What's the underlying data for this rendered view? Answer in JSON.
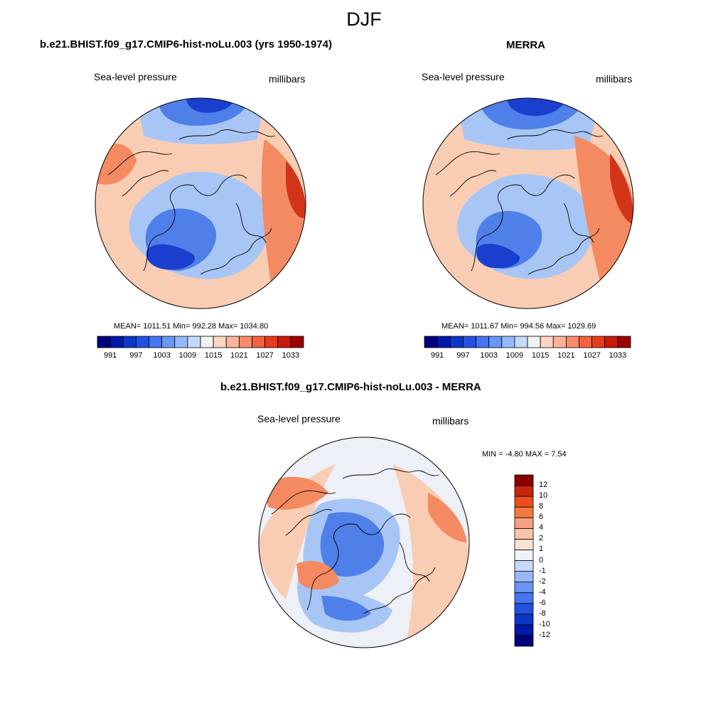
{
  "title": "DJF",
  "panels": [
    {
      "title": "b.e21.BHIST.f09_g17.CMIP6-hist-noLu.003 (yrs 1950-1974)",
      "variable": "Sea-level pressure",
      "units": "millibars",
      "stats": "MEAN= 1011.51  Min= 992.28  Max= 1034.80"
    },
    {
      "title": "MERRA",
      "variable": "Sea-level pressure",
      "units": "millibars",
      "stats": "MEAN= 1011.67  Min= 994.56  Max= 1029.69"
    },
    {
      "title": "b.e21.BHIST.f09_g17.CMIP6-hist-noLu.003 - MERRA",
      "variable": "Sea-level pressure",
      "units": "millibars",
      "stats": "MIN =  -4.80 MAX =   7.54"
    }
  ],
  "colorbar_abs": {
    "colors": [
      "#00007f",
      "#0019a8",
      "#0a37c8",
      "#2352e0",
      "#4575ef",
      "#6a96f5",
      "#98b9f8",
      "#c5dafb",
      "#f2f2f2",
      "#fcd6c3",
      "#fbb49a",
      "#f98b6c",
      "#f4623f",
      "#e63b1e",
      "#c81a0a",
      "#9a0000"
    ],
    "tick_labels": [
      "991",
      "997",
      "1003",
      "1009",
      "1015",
      "1021",
      "1027",
      "1033"
    ]
  },
  "colorbar_diff": {
    "colors": [
      "#00007f",
      "#0019a8",
      "#0a37c8",
      "#2352e0",
      "#4575ef",
      "#6a96f5",
      "#98b9f8",
      "#c5dafb",
      "#eef3fa",
      "#fbe3d4",
      "#fbc5ab",
      "#f9a082",
      "#f4773f",
      "#e94e1b",
      "#c6240b",
      "#8b0000"
    ],
    "tick_labels": [
      "12",
      "10",
      "8",
      "6",
      "4",
      "2",
      "1",
      "0",
      "-1",
      "-2",
      "-4",
      "-6",
      "-8",
      "-10",
      "-12"
    ]
  },
  "color_scale": {
    "deep_low": "#1a3fcf",
    "low": "#4f7fe8",
    "light_low": "#a8c6f5",
    "neutral": "#eef0f7",
    "light_high": "#f9cdb3",
    "high": "#f48a62",
    "deep_high": "#d2341a"
  }
}
